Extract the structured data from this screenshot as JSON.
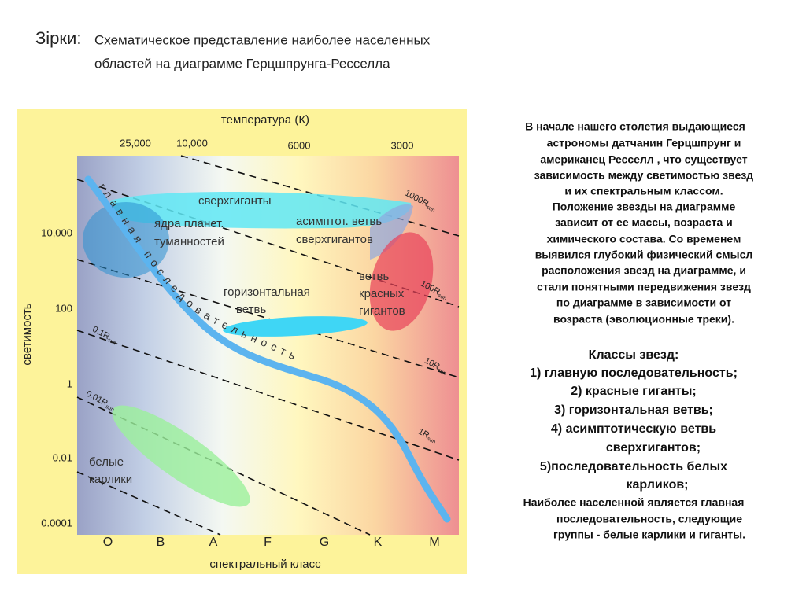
{
  "header": {
    "title_lead": "Зірки:",
    "title_line1": "Схематическое представление наиболее населенных",
    "title_line2": "областей на диаграмме Герцшпрунга-Ресселла"
  },
  "diagram": {
    "top_axis_title": "температура (К)",
    "temperature_ticks": [
      "25,000",
      "10,000",
      "6000",
      "3000"
    ],
    "y_axis_title": "светимость",
    "luminosity_ticks": [
      "10,000",
      "100",
      "1",
      "0.01",
      "0.0001"
    ],
    "spectral_classes": [
      "O",
      "B",
      "A",
      "F",
      "G",
      "K",
      "M"
    ],
    "x_axis_title": "спектральный класс",
    "radius_lines": [
      {
        "label": "1000R",
        "sub": "sun"
      },
      {
        "label": "100R",
        "sub": "sun"
      },
      {
        "label": "10R",
        "sub": "sun"
      },
      {
        "label": "1R",
        "sub": "sun"
      },
      {
        "label": "0.1R",
        "sub": "sun"
      },
      {
        "label": "0.01R",
        "sub": "sun"
      }
    ],
    "regions": {
      "supergiants": [
        "сверхгиганты"
      ],
      "nebula_cores": [
        "ядра планет.",
        "туманностей"
      ],
      "asymptotic_branch": [
        "асимптот. ветвь",
        "сверхгигантов"
      ],
      "horizontal_branch": [
        "горизонтальная",
        "ветвь"
      ],
      "red_giants": [
        "ветвь",
        "красных",
        "гигантов"
      ],
      "white_dwarfs": [
        "белые",
        "карлики"
      ],
      "main_sequence": "главная последовательность"
    }
  },
  "text": {
    "paragraph": [
      "В начале нашего столетия выдающиеся",
      "астрономы датчанин Герцшпрунг и",
      "американец Ресселл , что существует",
      "зависимость между светимостью звезд",
      "и их спектральным классом.",
      "Положение звезды на диаграмме",
      "зависит от ее массы, возраста и",
      "химического состава. Со временем",
      "выявился глубокий физический смысл",
      "расположения звезд на диаграмме, и",
      "стали понятными передвижения звезд",
      "по диаграмме в зависимости от",
      "возраста (эволюционные треки)."
    ],
    "classes_title": "Классы звезд:",
    "classes": [
      "1) главную последовательность;",
      "2) красные гиганты;",
      "3) горизонтальная ветвь;",
      "4) асимптотическую ветвь",
      "сверхгигантов;",
      "5)последовательность белых",
      "карликов;"
    ],
    "conclusion": [
      "Наиболее населенной является главная",
      "последовательность, следующие",
      "группы - белые карлики и гиганты."
    ]
  }
}
